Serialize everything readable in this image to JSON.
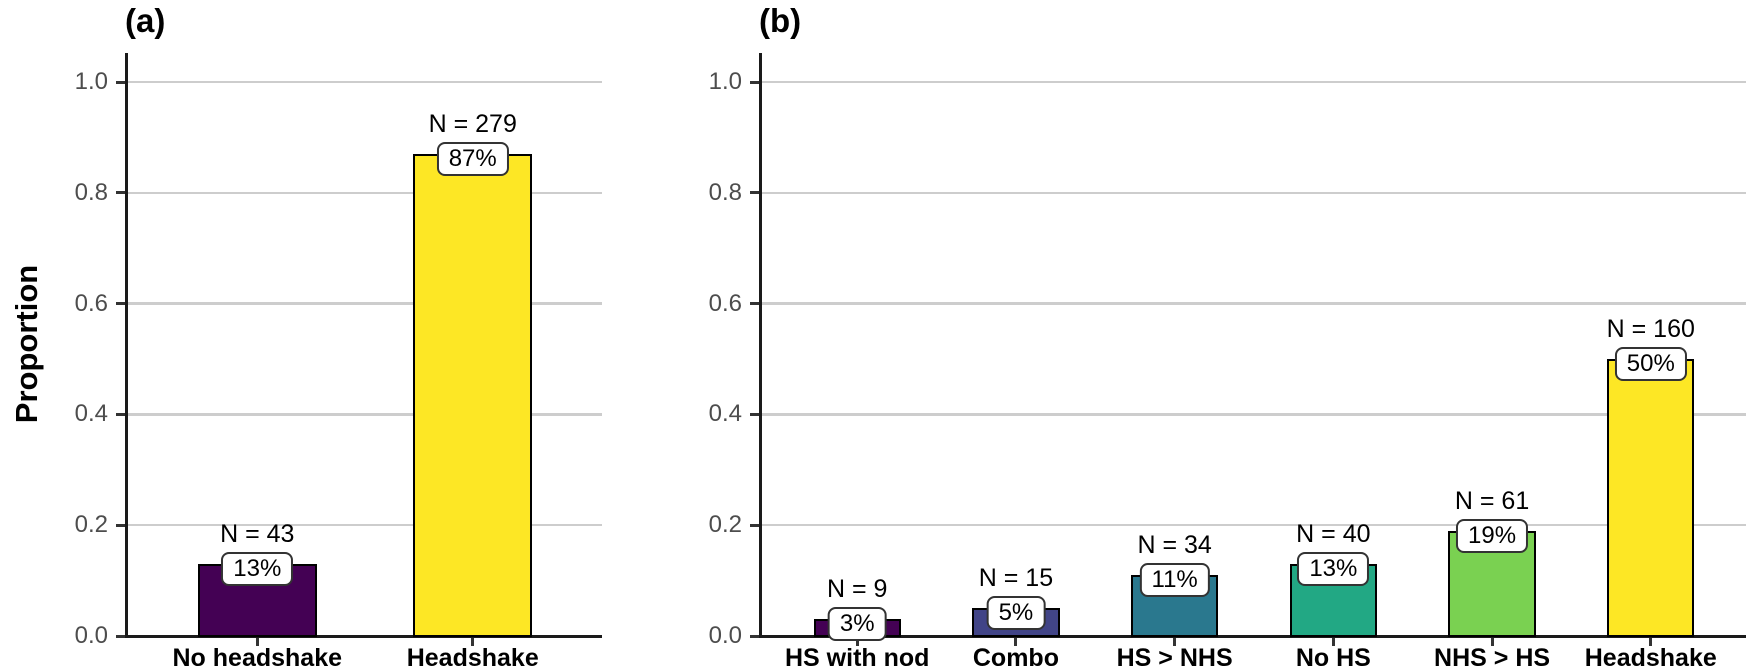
{
  "chart_data": [
    {
      "type": "bar",
      "panel_label": "(a)",
      "title": "",
      "xlabel": "",
      "ylabel": "Proportion",
      "ylim": [
        0,
        1.05
      ],
      "grid": "horizontal-major-only",
      "legend": "none",
      "y_ticks": [
        1.0,
        0.8,
        0.6,
        0.4,
        0.2,
        0.0
      ],
      "y_tick_labels": [
        "1.0",
        "0.8",
        "0.6",
        "0.4",
        "0.2",
        "0.0"
      ],
      "categories": [
        "No headshake",
        "Headshake"
      ],
      "values": [
        0.13,
        0.87
      ],
      "counts": [
        43,
        279
      ],
      "count_labels": [
        "N = 43",
        "N = 279"
      ],
      "pct_labels": [
        "13%",
        "87%"
      ],
      "bar_colors": [
        "#440154",
        "#FDE725"
      ]
    },
    {
      "type": "bar",
      "panel_label": "(b)",
      "title": "",
      "xlabel": "",
      "ylabel": "",
      "ylim": [
        0,
        1.05
      ],
      "grid": "horizontal-major-only",
      "legend": "none",
      "y_ticks": [
        1.0,
        0.8,
        0.6,
        0.4,
        0.2,
        0.0
      ],
      "y_tick_labels": [
        "1.0",
        "0.8",
        "0.6",
        "0.4",
        "0.2",
        "0.0"
      ],
      "categories": [
        "HS with nod",
        "Combo",
        "HS > NHS",
        "No HS",
        "NHS > HS",
        "Headshake"
      ],
      "values": [
        0.03,
        0.05,
        0.11,
        0.13,
        0.19,
        0.5
      ],
      "counts": [
        9,
        15,
        34,
        40,
        61,
        160
      ],
      "count_labels": [
        "N = 9",
        "N = 15",
        "N = 34",
        "N = 40",
        "N = 61",
        "N = 160"
      ],
      "pct_labels": [
        "3%",
        "5%",
        "11%",
        "13%",
        "19%",
        "50%"
      ],
      "bar_colors": [
        "#440154",
        "#414487",
        "#2A788E",
        "#22A884",
        "#7AD151",
        "#FDE725"
      ]
    }
  ],
  "styles": {
    "background": "#FFFFFF",
    "grid_color": "#CDCDCD",
    "axis_color": "#1A1A1A",
    "tick_color": "#333333",
    "y_tick_label_color": "#4D4D4D",
    "bar_border_color": "#000000",
    "label_box_bg": "#FFFFFF",
    "label_box_border": "#333333",
    "text_color": "#000000"
  }
}
